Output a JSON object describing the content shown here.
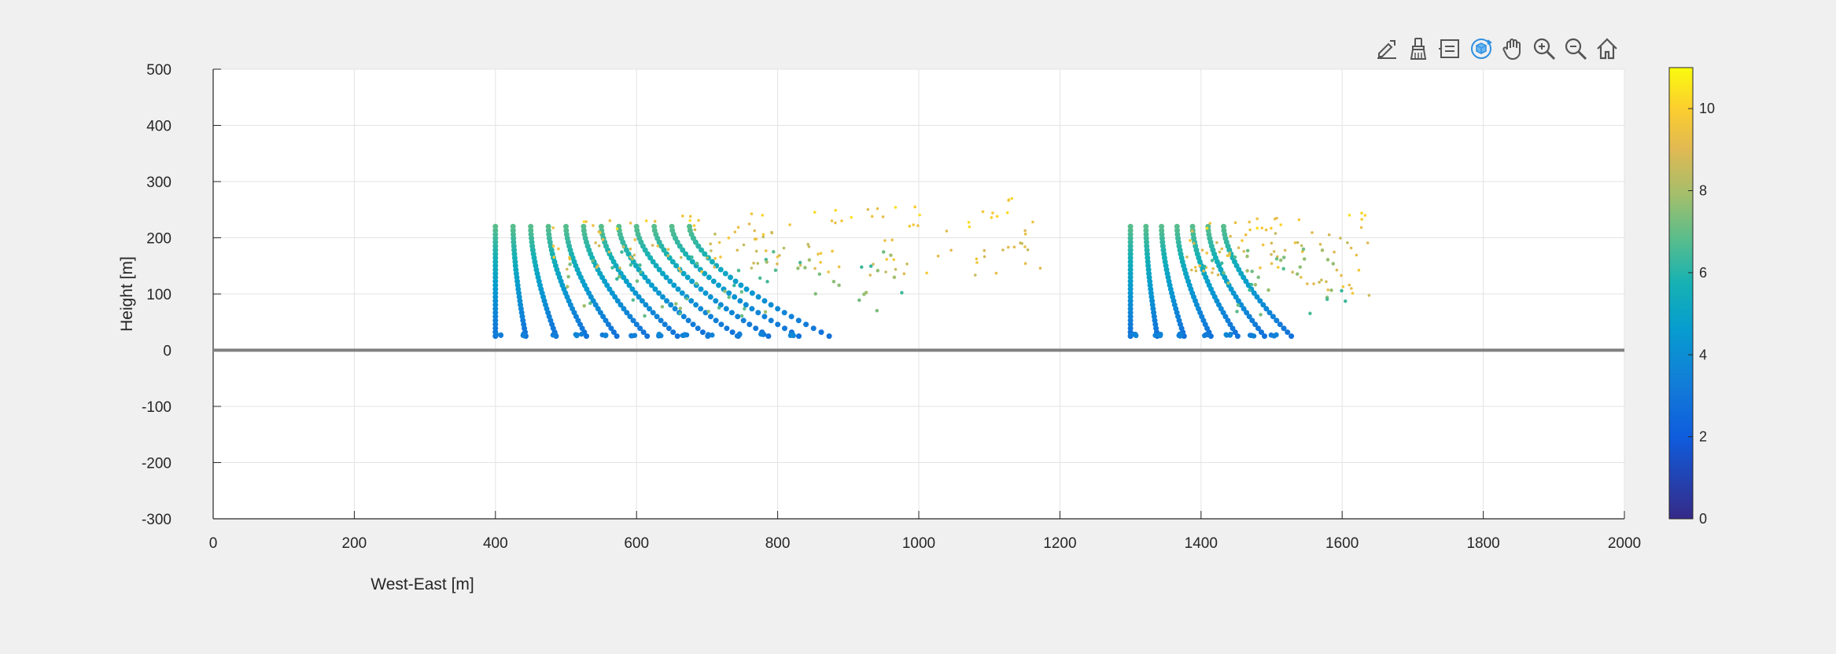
{
  "toolbar": {
    "icons": [
      "edit-export-icon",
      "brush-icon",
      "datatip-icon",
      "rotate-3d-icon",
      "pan-hand-icon",
      "zoom-in-icon",
      "zoom-out-icon",
      "home-icon"
    ],
    "active": "rotate-3d-icon"
  },
  "chart_data": {
    "type": "scatter",
    "title": "",
    "xlabel": "West-East [m]",
    "ylabel": "Height [m]",
    "xlim": [
      0,
      2000
    ],
    "ylim": [
      -300,
      500
    ],
    "xticks": [
      "0",
      "200",
      "400",
      "600",
      "800",
      "1000",
      "1200",
      "1400",
      "1600",
      "1800",
      "2000"
    ],
    "yticks": [
      "500",
      "400",
      "300",
      "200",
      "100",
      "0",
      "-100",
      "-200",
      "-300"
    ],
    "grid": true,
    "ground_line_y": 0,
    "colormap": "parula",
    "colorbar": {
      "clim": [
        0,
        11
      ],
      "ticks": [
        "0",
        "2",
        "4",
        "6",
        "8",
        "10"
      ],
      "location": "right"
    },
    "clusters": [
      {
        "x_start": 400,
        "turbines": 12,
        "spacing": 25,
        "base_height": 25,
        "max_height": 220,
        "drift_per_row": 18,
        "tail_extent_x": 1180,
        "tail_height": 275
      },
      {
        "x_start": 1300,
        "turbines": 7,
        "spacing": 22,
        "base_height": 25,
        "max_height": 220,
        "drift_per_row": 16,
        "tail_extent_x": 1640,
        "tail_height": 245
      }
    ]
  }
}
